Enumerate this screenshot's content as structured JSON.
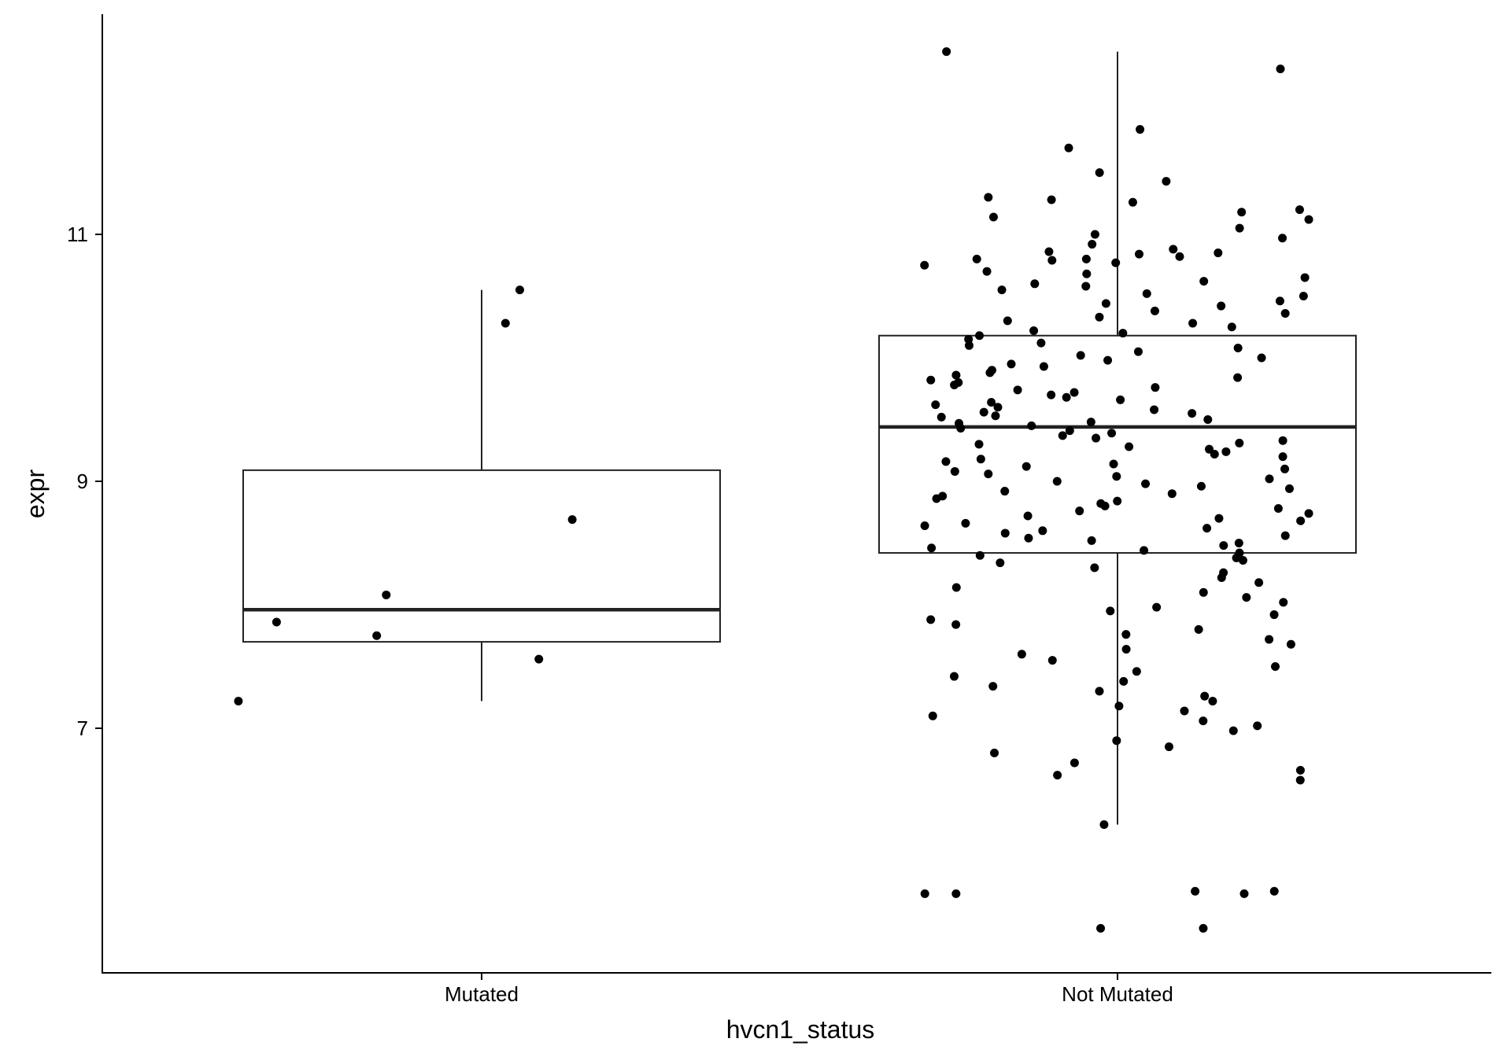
{
  "chart_data": {
    "type": "boxplot",
    "title": "",
    "xlabel": "hvcn1_status",
    "ylabel": "expr",
    "categories": [
      "Mutated",
      "Not Mutated"
    ],
    "yticks": [
      7,
      9,
      11
    ],
    "ylim": [
      5.3,
      12.8
    ],
    "grid": false,
    "legend": "none",
    "boxes": [
      {
        "category": "Mutated",
        "whisker_low": 7.22,
        "q1": 7.7,
        "median": 7.96,
        "q3": 9.09,
        "whisker_high": 10.55
      },
      {
        "category": "Not Mutated",
        "whisker_low": 6.22,
        "q1": 8.42,
        "median": 9.44,
        "q3": 10.18,
        "whisker_high": 12.48
      }
    ],
    "points": [
      {
        "category": "Mutated",
        "jitter": [
          -0.51,
          -0.43,
          -0.22,
          -0.2,
          0.05,
          0.08,
          0.12,
          0.19
        ],
        "values": [
          7.22,
          7.86,
          7.75,
          8.08,
          10.28,
          10.55,
          7.56,
          8.69
        ]
      },
      {
        "category": "Not Mutated",
        "jitter": [],
        "values": [
          12.34,
          12.48,
          11.85,
          11.7,
          11.5,
          11.43,
          11.3,
          11.28,
          11.26,
          11.2,
          11.18,
          11.14,
          11.12,
          11.05,
          11.0,
          10.97,
          10.92,
          10.88,
          10.86,
          10.85,
          10.84,
          10.82,
          10.8,
          10.8,
          10.79,
          10.77,
          10.75,
          10.7,
          10.68,
          10.65,
          10.62,
          10.6,
          10.58,
          10.55,
          10.52,
          10.5,
          10.46,
          10.44,
          10.42,
          10.38,
          10.36,
          10.33,
          10.3,
          10.28,
          10.25,
          10.22,
          10.2,
          10.18,
          10.15,
          10.12,
          10.1,
          10.08,
          10.05,
          10.02,
          10.0,
          9.98,
          9.95,
          9.93,
          9.9,
          9.88,
          9.86,
          9.84,
          9.82,
          9.8,
          9.78,
          9.76,
          9.74,
          9.72,
          9.7,
          9.68,
          9.66,
          9.64,
          9.62,
          9.6,
          9.58,
          9.56,
          9.55,
          9.53,
          9.52,
          9.5,
          9.48,
          9.47,
          9.45,
          9.43,
          9.41,
          9.39,
          9.37,
          9.35,
          9.33,
          9.31,
          9.3,
          9.28,
          9.26,
          9.24,
          9.22,
          9.2,
          9.18,
          9.16,
          9.14,
          9.12,
          9.1,
          9.08,
          9.06,
          9.04,
          9.02,
          9.0,
          8.98,
          8.96,
          8.94,
          8.92,
          8.9,
          8.88,
          8.86,
          8.84,
          8.82,
          8.8,
          8.78,
          8.76,
          8.74,
          8.72,
          8.7,
          8.68,
          8.66,
          8.64,
          8.62,
          8.6,
          8.58,
          8.56,
          8.54,
          8.52,
          8.5,
          8.48,
          8.46,
          8.44,
          8.42,
          8.4,
          8.38,
          8.36,
          8.34,
          8.3,
          8.26,
          8.22,
          8.18,
          8.14,
          8.1,
          8.06,
          8.02,
          7.98,
          7.95,
          7.92,
          7.88,
          7.84,
          7.8,
          7.76,
          7.72,
          7.68,
          7.64,
          7.6,
          7.55,
          7.5,
          7.46,
          7.42,
          7.38,
          7.34,
          7.3,
          7.26,
          7.22,
          7.18,
          7.14,
          7.1,
          7.06,
          7.02,
          6.98,
          6.9,
          6.85,
          6.8,
          6.72,
          6.66,
          6.62,
          6.58,
          6.22,
          5.68,
          5.66,
          5.66,
          5.66,
          5.68,
          5.38,
          5.38
        ]
      }
    ]
  }
}
